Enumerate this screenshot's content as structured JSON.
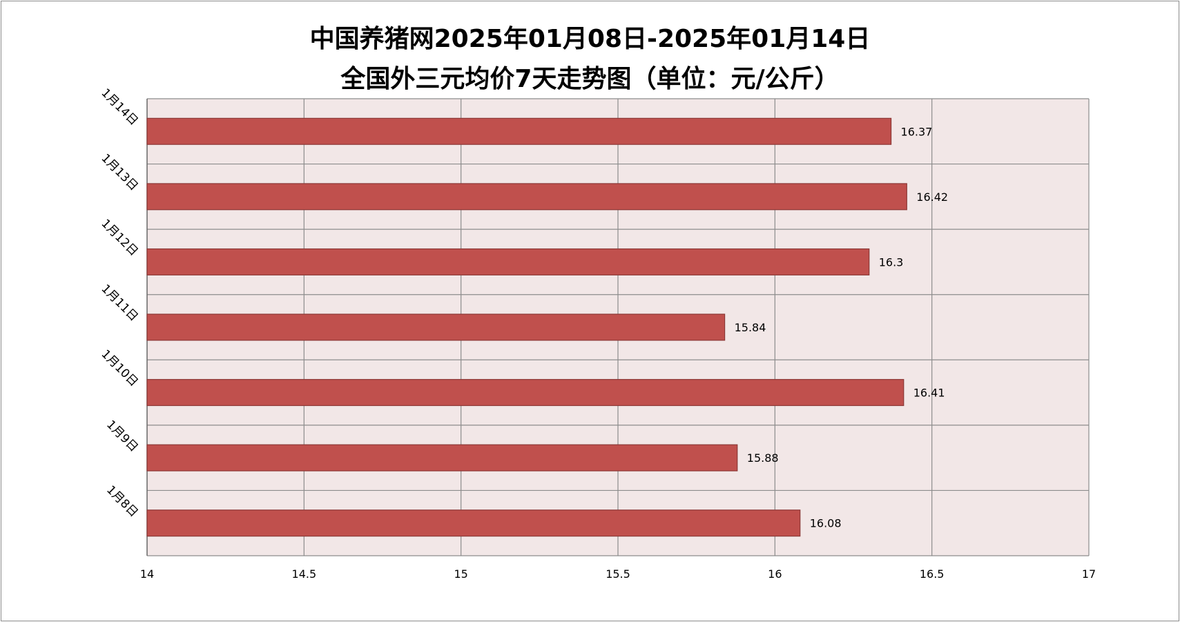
{
  "chart_data": {
    "type": "bar",
    "orientation": "horizontal",
    "title_line1": "中国养猪网2025年01月08日-2025年01月14日",
    "title_line2": "全国外三元均价7天走势图（单位：元/公斤）",
    "categories": [
      "1月8日",
      "1月9日",
      "1月10日",
      "1月11日",
      "1月12日",
      "1月13日",
      "1月14日"
    ],
    "values": [
      16.08,
      15.88,
      16.41,
      15.84,
      16.3,
      16.42,
      16.37
    ],
    "value_labels": [
      "16.08",
      "15.88",
      "16.41",
      "15.84",
      "16.3",
      "16.42",
      "16.37"
    ],
    "xlim": [
      14,
      17
    ],
    "x_ticks": [
      14,
      14.5,
      15,
      15.5,
      16,
      16.5,
      17
    ],
    "x_tick_labels": [
      "14",
      "14.5",
      "15",
      "15.5",
      "16",
      "16.5",
      "17"
    ],
    "grid": true,
    "colors": {
      "bar": "#c0504d",
      "bar_border": "#8c3836",
      "plot_bg": "#f2e7e7",
      "grid": "#8c8c8c"
    }
  }
}
